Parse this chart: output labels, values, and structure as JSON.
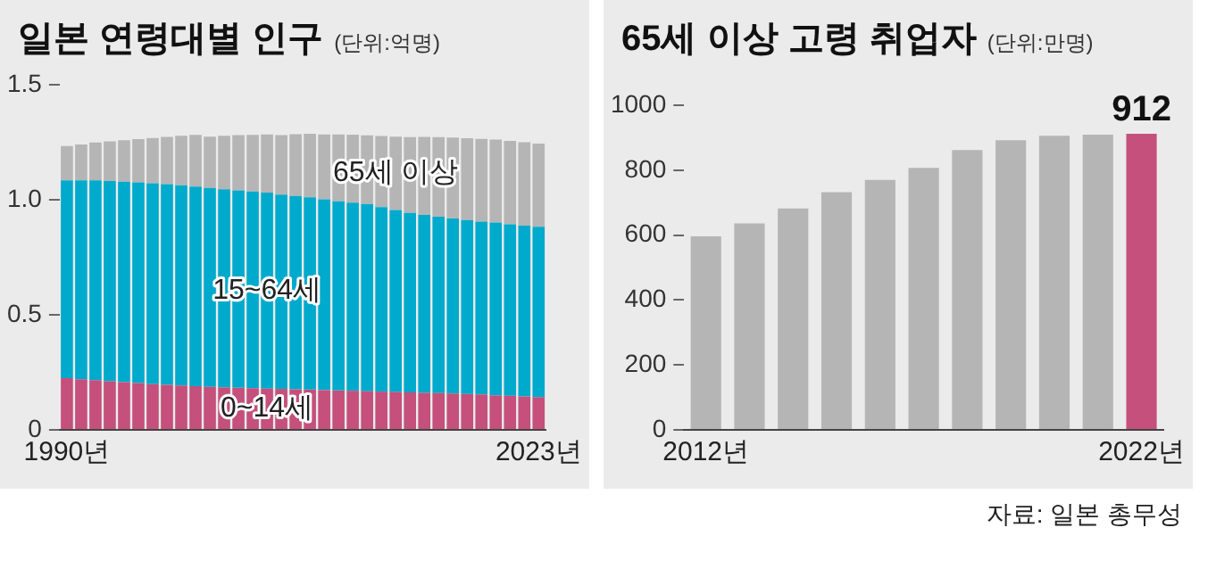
{
  "chart_data": [
    {
      "type": "bar",
      "title": "일본 연령대별 인구",
      "subtitle": "(단위:억명)",
      "stacked": true,
      "grid": false,
      "categories": [
        "1990년",
        null,
        null,
        null,
        null,
        null,
        null,
        null,
        null,
        null,
        null,
        null,
        null,
        null,
        null,
        null,
        null,
        null,
        null,
        null,
        null,
        null,
        null,
        null,
        null,
        null,
        null,
        null,
        null,
        null,
        null,
        null,
        null,
        "2023년"
      ],
      "ylim": [
        0,
        1.5
      ],
      "yticks": [
        0,
        0.5,
        {
          "value": 1,
          "label": "1.0"
        },
        1.5
      ],
      "series": [
        {
          "name": "0~14세",
          "color": "#c4507b",
          "values": [
            0.225,
            0.22,
            0.216,
            0.211,
            0.207,
            0.203,
            0.199,
            0.196,
            0.193,
            0.19,
            0.187,
            0.185,
            0.183,
            0.181,
            0.179,
            0.178,
            0.176,
            0.175,
            0.173,
            0.171,
            0.17,
            0.168,
            0.166,
            0.165,
            0.163,
            0.161,
            0.16,
            0.158,
            0.156,
            0.154,
            0.15,
            0.148,
            0.145,
            0.142
          ]
        },
        {
          "name": "15~64세",
          "color": "#00aacc",
          "values": [
            0.859,
            0.864,
            0.868,
            0.87,
            0.871,
            0.872,
            0.872,
            0.871,
            0.869,
            0.867,
            0.864,
            0.86,
            0.857,
            0.854,
            0.851,
            0.844,
            0.84,
            0.835,
            0.828,
            0.822,
            0.817,
            0.813,
            0.802,
            0.79,
            0.779,
            0.773,
            0.766,
            0.76,
            0.755,
            0.751,
            0.751,
            0.745,
            0.742,
            0.74
          ]
        },
        {
          "name": "65세 이상",
          "color": "#b5b5b5",
          "values": [
            0.149,
            0.156,
            0.164,
            0.172,
            0.18,
            0.188,
            0.197,
            0.206,
            0.215,
            0.224,
            0.223,
            0.232,
            0.24,
            0.246,
            0.253,
            0.258,
            0.268,
            0.276,
            0.282,
            0.29,
            0.295,
            0.298,
            0.308,
            0.319,
            0.33,
            0.339,
            0.346,
            0.352,
            0.356,
            0.359,
            0.36,
            0.362,
            0.362,
            0.362
          ]
        }
      ]
    },
    {
      "type": "bar",
      "title": "65세 이상 고령 취업자",
      "subtitle": "(단위:만명)",
      "grid": false,
      "categories": [
        "2012년",
        null,
        null,
        null,
        null,
        null,
        null,
        null,
        null,
        null,
        "2022년"
      ],
      "values": [
        596,
        636,
        682,
        732,
        770,
        807,
        862,
        892,
        906,
        909,
        912
      ],
      "colors": [
        "#b5b5b5",
        "#b5b5b5",
        "#b5b5b5",
        "#b5b5b5",
        "#b5b5b5",
        "#b5b5b5",
        "#b5b5b5",
        "#b5b5b5",
        "#b5b5b5",
        "#b5b5b5",
        "#c4507b"
      ],
      "value_labels": [
        null,
        null,
        null,
        null,
        null,
        null,
        null,
        null,
        null,
        null,
        "912"
      ],
      "ylim": [
        0,
        1000
      ],
      "yticks": [
        0,
        200,
        400,
        600,
        800,
        1000
      ],
      "annotations": [
        "자료: 일본 총무성"
      ]
    }
  ]
}
